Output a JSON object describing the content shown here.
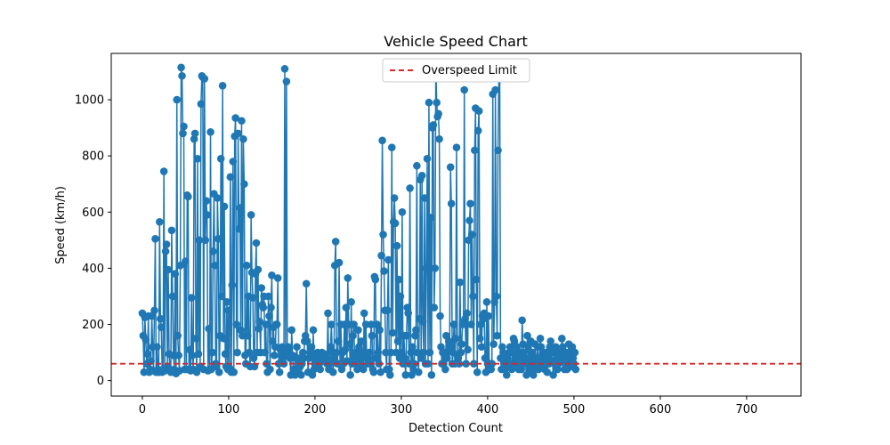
{
  "chart_data": {
    "type": "line",
    "title": "Vehicle Speed Chart",
    "xlabel": "Detection Count",
    "ylabel": "Speed (km/h)",
    "xlim": [
      -36,
      763
    ],
    "ylim": [
      -55,
      1165
    ],
    "x_ticks": [
      0,
      100,
      200,
      300,
      400,
      500,
      600,
      700
    ],
    "x_tick_labels": [
      "0",
      "100",
      "200",
      "300",
      "400",
      "500",
      "600",
      "700"
    ],
    "y_ticks": [
      0,
      200,
      400,
      600,
      800,
      1000
    ],
    "y_tick_labels": [
      "0",
      "200",
      "400",
      "600",
      "800",
      "1000"
    ],
    "grid": false,
    "legend_position": "top-center",
    "series": [
      {
        "name": "",
        "color": "#1f77b4",
        "marker": "circle",
        "x_start": 0,
        "x_step": 1,
        "values": [
          240,
          160,
          30,
          225,
          145,
          60,
          95,
          230,
          30,
          40,
          70,
          230,
          120,
          35,
          250,
          505,
          30,
          120,
          40,
          30,
          565,
          220,
          190,
          30,
          40,
          745,
          35,
          460,
          485,
          50,
          395,
          95,
          40,
          30,
          535,
          300,
          90,
          40,
          380,
          25,
          1000,
          160,
          90,
          35,
          410,
          1115,
          1085,
          880,
          905,
          40,
          425,
          40,
          660,
          655,
          40,
          110,
          35,
          295,
          90,
          40,
          860,
          880,
          150,
          30,
          790,
          95,
          500,
          50,
          985,
          1085,
          1080,
          40,
          1075,
          500,
          640,
          590,
          35,
          185,
          40,
          885,
          40,
          100,
          460,
          665,
          410,
          60,
          50,
          650,
          505,
          30,
          160,
          790,
          300,
          1050,
          150,
          620,
          95,
          50,
          280,
          40,
          250,
          45,
          725,
          30,
          340,
          780,
          30,
          870,
          935,
          200,
          100,
          880,
          540,
          615,
          180,
          925,
          160,
          860,
          700,
          90,
          60,
          410,
          160,
          300,
          100,
          50,
          590,
          385,
          295,
          80,
          50,
          380,
          490,
          100,
          395,
          185,
          210,
          100,
          330,
          270,
          260,
          300,
          100,
          200,
          60,
          30,
          300,
          230,
          40,
          260,
          375,
          140,
          190,
          90,
          120,
          200,
          200,
          365,
          60,
          30,
          110,
          90,
          120,
          80,
          60,
          1110,
          100,
          1065,
          90,
          120,
          100,
          80,
          20,
          180,
          90,
          40,
          30,
          20,
          80,
          120,
          60,
          40,
          80,
          50,
          20,
          60,
          100,
          80,
          140,
          160,
          345,
          140,
          30,
          80,
          100,
          110,
          120,
          20,
          180,
          40,
          60,
          80,
          60,
          100,
          80,
          60,
          40,
          90,
          100,
          80,
          70,
          95,
          85,
          80,
          60,
          240,
          40,
          60,
          120,
          200,
          100,
          30,
          80,
          410,
          495,
          100,
          60,
          140,
          420,
          60,
          200,
          40,
          100,
          60,
          200,
          110,
          260,
          70,
          365,
          200,
          130,
          20,
          280,
          60,
          160,
          200,
          80,
          100,
          60,
          40,
          180,
          120,
          80,
          60,
          140,
          100,
          40,
          240,
          100,
          200,
          80,
          60,
          80,
          100,
          60,
          200,
          160,
          40,
          30,
          370,
          360,
          80,
          200,
          100,
          60,
          180,
          30,
          445,
          855,
          520,
          390,
          250,
          100,
          40,
          250,
          430,
          40,
          20,
          100,
          830,
          170,
          565,
          650,
          560,
          100,
          480,
          140,
          360,
          80,
          300,
          100,
          600,
          60,
          160,
          80,
          20,
          160,
          260,
          240,
          60,
          685,
          100,
          20,
          120,
          40,
          60,
          160,
          180,
          765,
          100,
          30,
          220,
          715,
          80,
          730,
          210,
          100,
          650,
          60,
          400,
          790,
          60,
          990,
          100,
          580,
          20,
          900,
          910,
          260,
          400,
          1120,
          990,
          940,
          950,
          860,
          230,
          120,
          60,
          100,
          60,
          100,
          40,
          160,
          80,
          100,
          140,
          120,
          760,
          630,
          60,
          100,
          200,
          60,
          150,
          830,
          90,
          80,
          60,
          350,
          100,
          130,
          200,
          210,
          1035,
          220,
          60,
          240,
          110,
          500,
          570,
          630,
          200,
          520,
          300,
          60,
          820,
          970,
          360,
          30,
          890,
          960,
          150,
          200,
          120,
          230,
          220,
          240,
          80,
          30,
          280,
          60,
          230,
          40,
          60,
          40,
          60,
          1020,
          130,
          280,
          1035,
          300,
          160,
          820,
          1085,
          1100,
          80,
          40,
          120,
          100,
          60,
          40,
          70,
          20,
          80,
          60,
          100,
          120,
          60,
          40,
          100,
          150,
          140,
          80,
          60,
          120,
          80,
          40,
          100,
          60,
          40,
          215,
          130,
          100,
          80,
          60,
          20,
          160,
          120,
          40,
          80,
          140,
          60,
          100,
          20,
          40,
          130,
          80,
          60,
          120,
          40,
          80,
          150,
          120,
          60,
          100,
          80,
          40,
          60,
          100,
          30,
          80,
          60,
          120,
          140,
          100,
          70,
          20,
          100,
          60,
          120,
          80,
          40,
          60,
          90,
          100,
          70,
          150,
          120,
          80,
          40,
          60,
          100,
          40,
          80,
          130,
          60,
          100,
          50,
          120,
          80,
          60,
          100,
          40
        ]
      },
      {
        "name": "Overspeed Limit",
        "color": "#d62728",
        "style": "dashed",
        "values": [
          60
        ]
      }
    ]
  }
}
